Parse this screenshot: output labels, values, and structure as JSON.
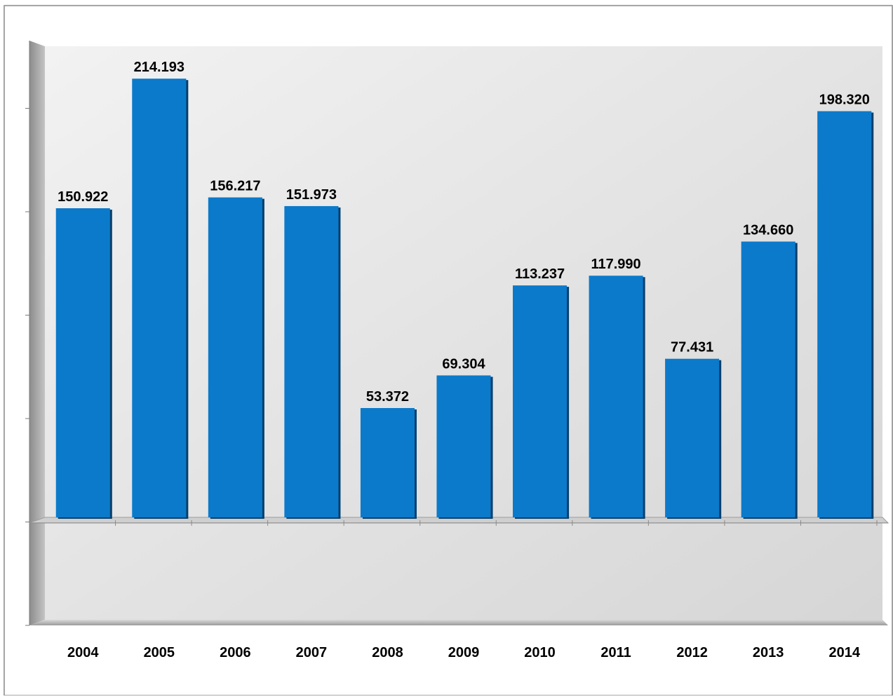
{
  "chart_data": {
    "type": "bar",
    "title": "",
    "xlabel": "",
    "ylabel": "",
    "categories": [
      "2004",
      "2005",
      "2006",
      "2007",
      "2008",
      "2009",
      "2010",
      "2011",
      "2012",
      "2013",
      "2014"
    ],
    "values": [
      150.922,
      214.193,
      156.217,
      151.973,
      53.372,
      69.304,
      113.237,
      117.99,
      77.431,
      134.66,
      198.32
    ],
    "value_labels": [
      "150.922",
      "214.193",
      "156.217",
      "151.973",
      "53.372",
      "69.304",
      "113.237",
      "117.990",
      "77.431",
      "134.660",
      "198.320"
    ],
    "ylim": [
      -50,
      230
    ],
    "y_tick_step": 50,
    "y_tick_labels_visible": false,
    "grid": false,
    "legend": "none",
    "bar_color": "#0b7acb",
    "bar_shadow_color": "#063f6b",
    "plot_background": "#e4e4e4",
    "wall_color": "#a8a8a8"
  }
}
